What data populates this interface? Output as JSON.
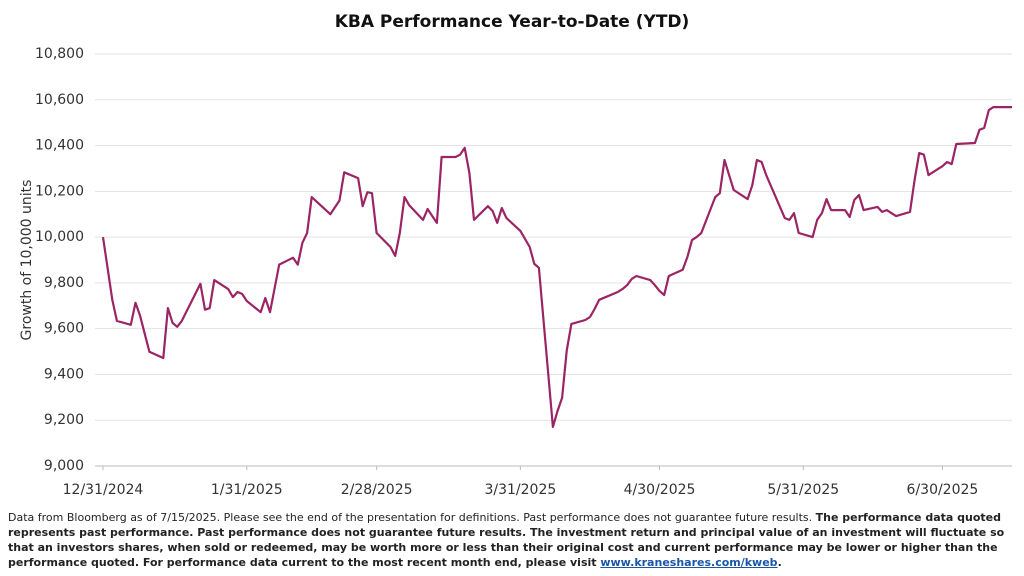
{
  "chart_data": {
    "type": "line",
    "title": "KBA Performance Year-to-Date (YTD)",
    "y_label": "Growth of 10,000 units",
    "x": [
      "12/31/2024",
      "1/2/2025",
      "1/3/2025",
      "1/6/2025",
      "1/7/2025",
      "1/8/2025",
      "1/10/2025",
      "1/13/2025",
      "1/14/2025",
      "1/15/2025",
      "1/16/2025",
      "1/17/2025",
      "1/21/2025",
      "1/22/2025",
      "1/23/2025",
      "1/24/2025",
      "1/27/2025",
      "1/28/2025",
      "1/29/2025",
      "1/30/2025",
      "1/31/2025",
      "2/3/2025",
      "2/4/2025",
      "2/5/2025",
      "2/7/2025",
      "2/10/2025",
      "2/11/2025",
      "2/12/2025",
      "2/13/2025",
      "2/14/2025",
      "2/18/2025",
      "2/20/2025",
      "2/21/2025",
      "2/24/2025",
      "2/25/2025",
      "2/26/2025",
      "2/27/2025",
      "2/28/2025",
      "3/3/2025",
      "3/4/2025",
      "3/5/2025",
      "3/6/2025",
      "3/7/2025",
      "3/10/2025",
      "3/11/2025",
      "3/12/2025",
      "3/13/2025",
      "3/14/2025",
      "3/17/2025",
      "3/18/2025",
      "3/19/2025",
      "3/20/2025",
      "3/21/2025",
      "3/24/2025",
      "3/25/2025",
      "3/26/2025",
      "3/27/2025",
      "3/28/2025",
      "3/31/2025",
      "4/2/2025",
      "4/3/2025",
      "4/4/2025",
      "4/7/2025",
      "4/8/2025",
      "4/9/2025",
      "4/10/2025",
      "4/11/2025",
      "4/14/2025",
      "4/15/2025",
      "4/16/2025",
      "4/17/2025",
      "4/21/2025",
      "4/22/2025",
      "4/23/2025",
      "4/24/2025",
      "4/25/2025",
      "4/28/2025",
      "4/29/2025",
      "4/30/2025",
      "5/1/2025",
      "5/2/2025",
      "5/5/2025",
      "5/6/2025",
      "5/7/2025",
      "5/8/2025",
      "5/9/2025",
      "5/12/2025",
      "5/13/2025",
      "5/14/2025",
      "5/15/2025",
      "5/16/2025",
      "5/19/2025",
      "5/20/2025",
      "5/21/2025",
      "5/22/2025",
      "5/23/2025",
      "5/27/2025",
      "5/28/2025",
      "5/29/2025",
      "5/30/2025",
      "6/2/2025",
      "6/3/2025",
      "6/4/2025",
      "6/5/2025",
      "6/6/2025",
      "6/9/2025",
      "6/10/2025",
      "6/11/2025",
      "6/12/2025",
      "6/13/2025",
      "6/16/2025",
      "6/17/2025",
      "6/18/2025",
      "6/20/2025",
      "6/23/2025",
      "6/24/2025",
      "6/25/2025",
      "6/26/2025",
      "6/27/2025",
      "6/30/2025",
      "7/1/2025",
      "7/2/2025",
      "7/3/2025",
      "7/7/2025",
      "7/8/2025",
      "7/9/2025",
      "7/10/2025",
      "7/11/2025",
      "7/14/2025",
      "7/15/2025"
    ],
    "series": [
      {
        "color": "#9b2464",
        "values": [
          10000,
          9726,
          9634,
          9617,
          9713,
          9656,
          9499,
          9472,
          9690,
          9625,
          9608,
          9634,
          9796,
          9683,
          9690,
          9812,
          9773,
          9738,
          9760,
          9752,
          9721,
          9672,
          9734,
          9672,
          9880,
          9910,
          9880,
          9975,
          10018,
          10175,
          10100,
          10160,
          10283,
          10258,
          10135,
          10196,
          10192,
          10018,
          9957,
          9918,
          10018,
          10175,
          10140,
          10075,
          10123,
          10092,
          10062,
          10350,
          10350,
          10360,
          10390,
          10280,
          10075,
          10135,
          10114,
          10062,
          10127,
          10083,
          10027,
          9957,
          9883,
          9866,
          9171,
          9240,
          9298,
          9507,
          9621,
          9638,
          9651,
          9686,
          9726,
          9760,
          9773,
          9790,
          9817,
          9830,
          9812,
          9790,
          9765,
          9747,
          9830,
          9857,
          9913,
          9987,
          10000,
          10018,
          10175,
          10192,
          10337,
          10271,
          10206,
          10166,
          10227,
          10337,
          10328,
          10271,
          10083,
          10075,
          10105,
          10018,
          10000,
          10075,
          10105,
          10166,
          10118,
          10118,
          10088,
          10162,
          10184,
          10118,
          10132,
          10110,
          10118,
          10092,
          10110,
          10250,
          10367,
          10360,
          10271,
          10310,
          10328,
          10319,
          10407,
          10411,
          10469,
          10477,
          10555,
          10568,
          10568,
          10568
        ]
      }
    ],
    "xlim": [
      "12/31/2024",
      "7/15/2025"
    ],
    "xticks": [
      "12/31/2024",
      "1/31/2025",
      "2/28/2025",
      "3/31/2025",
      "4/30/2025",
      "5/31/2025",
      "6/30/2025"
    ],
    "ylim": [
      9000,
      10800
    ],
    "yticks": [
      {
        "value": 9000,
        "label": "9,000"
      },
      {
        "value": 9200,
        "label": "9,200"
      },
      {
        "value": 9400,
        "label": "9,400"
      },
      {
        "value": 9600,
        "label": "9,600"
      },
      {
        "value": 9800,
        "label": "9,800"
      },
      {
        "value": 10000,
        "label": "10,000"
      },
      {
        "value": 10200,
        "label": "10,200"
      },
      {
        "value": 10400,
        "label": "10,400"
      },
      {
        "value": 10600,
        "label": "10,600"
      },
      {
        "value": 10800,
        "label": "10,800"
      }
    ],
    "grid": true
  },
  "footnote": {
    "parts": [
      "Data from Bloomberg as of 7/15/2025. Please see the end of the presentation for definitions. Past performance does not guarantee future results. ",
      "The performance data quoted represents past performance. Past performance does not guarantee future results. The investment return and principal value of an investment will fluctuate so that an investors shares, when sold or redeemed, may be worth more or less than their original cost and current performance may be lower or higher than the performance quoted. For performance data current to the most recent month end, please visit ",
      "www.kraneshares.com/kweb",
      "."
    ]
  }
}
